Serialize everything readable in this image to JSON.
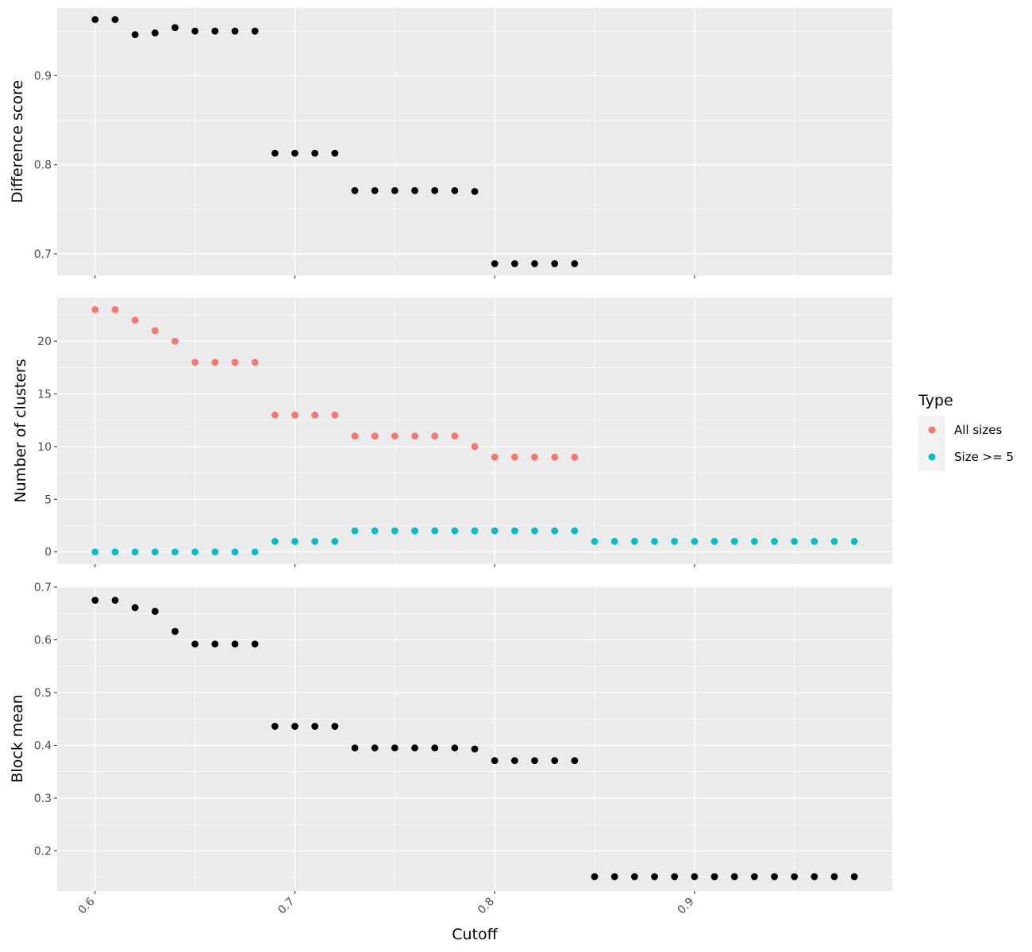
{
  "chart_data": {
    "type": "scatter",
    "xlabel": "Cutoff",
    "x_ticks": [
      0.6,
      0.7,
      0.8,
      0.9
    ],
    "x_tick_labels": [
      "0.6",
      "0.7",
      "0.8",
      "0.9"
    ],
    "xlim": [
      0.581,
      0.999
    ],
    "colors": {
      "panel_bg": "#EBEBEB",
      "grid": "#FFFFFF",
      "point_default": "#000000"
    },
    "legend": {
      "title": "Type",
      "position": "right",
      "entries": [
        {
          "label": "All sizes",
          "color": "#F8766D"
        },
        {
          "label": "Size >= 5",
          "color": "#00BFC4"
        }
      ]
    },
    "panels": [
      {
        "ylabel": "Difference score",
        "ylim": [
          0.676,
          0.976
        ],
        "y_ticks": [
          0.7,
          0.8,
          0.9
        ],
        "y_tick_labels": [
          "0.7",
          "0.8",
          "0.9"
        ],
        "series": [
          {
            "color": "#000000",
            "x": [
              0.6,
              0.61,
              0.62,
              0.63,
              0.64,
              0.65,
              0.66,
              0.67,
              0.68,
              0.69,
              0.7,
              0.71,
              0.72,
              0.73,
              0.74,
              0.75,
              0.76,
              0.77,
              0.78,
              0.79,
              0.8,
              0.81,
              0.82,
              0.83,
              0.84
            ],
            "y": [
              0.963,
              0.963,
              0.946,
              0.948,
              0.954,
              0.95,
              0.95,
              0.95,
              0.95,
              0.813,
              0.813,
              0.813,
              0.813,
              0.771,
              0.771,
              0.771,
              0.771,
              0.771,
              0.771,
              0.77,
              0.689,
              0.689,
              0.689,
              0.689,
              0.689
            ]
          }
        ]
      },
      {
        "ylabel": "Number of clusters",
        "ylim": [
          -1.15,
          24.15
        ],
        "y_ticks": [
          0,
          5,
          10,
          15,
          20
        ],
        "y_tick_labels": [
          "0",
          "5",
          "10",
          "15",
          "20"
        ],
        "series": [
          {
            "name": "All sizes",
            "color": "#F8766D",
            "x": [
              0.6,
              0.61,
              0.62,
              0.63,
              0.64,
              0.65,
              0.66,
              0.67,
              0.68,
              0.69,
              0.7,
              0.71,
              0.72,
              0.73,
              0.74,
              0.75,
              0.76,
              0.77,
              0.78,
              0.79,
              0.8,
              0.81,
              0.82,
              0.83,
              0.84
            ],
            "y": [
              23,
              23,
              22,
              21,
              20,
              18,
              18,
              18,
              18,
              13,
              13,
              13,
              13,
              11,
              11,
              11,
              11,
              11,
              11,
              10,
              9,
              9,
              9,
              9,
              9
            ]
          },
          {
            "name": "Size >= 5",
            "color": "#00BFC4",
            "x": [
              0.6,
              0.61,
              0.62,
              0.63,
              0.64,
              0.65,
              0.66,
              0.67,
              0.68,
              0.69,
              0.7,
              0.71,
              0.72,
              0.73,
              0.74,
              0.75,
              0.76,
              0.77,
              0.78,
              0.79,
              0.8,
              0.81,
              0.82,
              0.83,
              0.84,
              0.85,
              0.86,
              0.87,
              0.88,
              0.89,
              0.9,
              0.91,
              0.92,
              0.93,
              0.94,
              0.95,
              0.96,
              0.97,
              0.98
            ],
            "y": [
              0,
              0,
              0,
              0,
              0,
              0,
              0,
              0,
              0,
              1,
              1,
              1,
              1,
              2,
              2,
              2,
              2,
              2,
              2,
              2,
              2,
              2,
              2,
              2,
              2,
              1,
              1,
              1,
              1,
              1,
              1,
              1,
              1,
              1,
              1,
              1,
              1,
              1,
              1
            ]
          }
        ]
      },
      {
        "ylabel": "Block mean",
        "ylim": [
          0.124,
          0.7015
        ],
        "y_ticks": [
          0.2,
          0.3,
          0.4,
          0.5,
          0.6,
          0.7
        ],
        "y_tick_labels": [
          "0.2",
          "0.3",
          "0.4",
          "0.5",
          "0.6",
          "0.7"
        ],
        "series": [
          {
            "color": "#000000",
            "x": [
              0.6,
              0.61,
              0.62,
              0.63,
              0.64,
              0.65,
              0.66,
              0.67,
              0.68,
              0.69,
              0.7,
              0.71,
              0.72,
              0.73,
              0.74,
              0.75,
              0.76,
              0.77,
              0.78,
              0.79,
              0.8,
              0.81,
              0.82,
              0.83,
              0.84,
              0.85,
              0.86,
              0.87,
              0.88,
              0.89,
              0.9,
              0.91,
              0.92,
              0.93,
              0.94,
              0.95,
              0.96,
              0.97,
              0.98
            ],
            "y": [
              0.675,
              0.675,
              0.661,
              0.654,
              0.616,
              0.592,
              0.592,
              0.592,
              0.592,
              0.436,
              0.436,
              0.436,
              0.436,
              0.395,
              0.395,
              0.395,
              0.395,
              0.395,
              0.395,
              0.393,
              0.371,
              0.371,
              0.371,
              0.371,
              0.371,
              0.151,
              0.151,
              0.151,
              0.151,
              0.151,
              0.151,
              0.151,
              0.151,
              0.151,
              0.151,
              0.151,
              0.151,
              0.151,
              0.151
            ]
          }
        ]
      }
    ]
  }
}
